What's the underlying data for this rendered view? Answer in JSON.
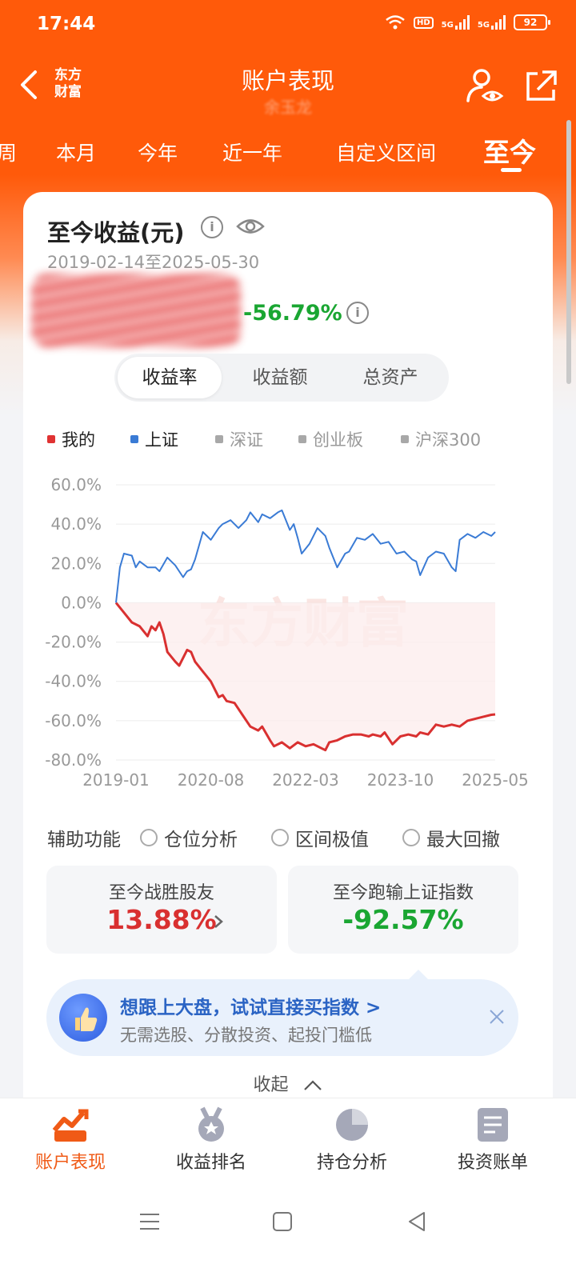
{
  "status_bar": {
    "time": "17:44",
    "hd_label": "HD",
    "net1": "5G",
    "net2": "5G",
    "battery": "92"
  },
  "header": {
    "logo_text": "东方财富",
    "title": "账户表现",
    "subtitle": "余玉龙"
  },
  "period_tabs": [
    {
      "label": "周",
      "active": false
    },
    {
      "label": "本月",
      "active": false
    },
    {
      "label": "今年",
      "active": false
    },
    {
      "label": "近一年",
      "active": false
    },
    {
      "label": "自定义区间",
      "active": false
    },
    {
      "label": "至今",
      "active": true
    }
  ],
  "summary": {
    "title": "至今收益(元)",
    "date_range": "2019-02-14至2025-05-30",
    "return_pct": "-56.79%",
    "info_glyph": "i"
  },
  "metric_tabs": [
    {
      "label": "收益率",
      "active": true
    },
    {
      "label": "收益额",
      "active": false
    },
    {
      "label": "总资产",
      "active": false
    }
  ],
  "legend": [
    {
      "label": "我的",
      "color": "#e03232"
    },
    {
      "label": "上证",
      "color": "#3a7bd5"
    },
    {
      "label": "深证",
      "color": "#a8a8a8"
    },
    {
      "label": "创业板",
      "color": "#a8a8a8"
    },
    {
      "label": "沪深300",
      "color": "#a8a8a8"
    }
  ],
  "chart_data": {
    "type": "line",
    "watermark": "东方财富",
    "x_ticks": [
      "2019-01",
      "2020-08",
      "2022-03",
      "2023-10",
      "2025-05"
    ],
    "y_ticks": [
      "60.0%",
      "40.0%",
      "20.0%",
      "0.0%",
      "-20.0%",
      "-40.0%",
      "-60.0%",
      "-80.0%"
    ],
    "ylim": [
      -80,
      60
    ],
    "grid": true,
    "series": [
      {
        "name": "我的",
        "color": "#d93030",
        "points": [
          [
            0,
            0
          ],
          [
            2,
            -5
          ],
          [
            4,
            -10
          ],
          [
            6,
            -12
          ],
          [
            8,
            -17
          ],
          [
            9,
            -12
          ],
          [
            10,
            -14
          ],
          [
            11,
            -10
          ],
          [
            12,
            -16
          ],
          [
            13,
            -25
          ],
          [
            15,
            -30
          ],
          [
            16,
            -32
          ],
          [
            18,
            -24
          ],
          [
            19,
            -25
          ],
          [
            20,
            -30
          ],
          [
            22,
            -35
          ],
          [
            24,
            -40
          ],
          [
            26,
            -48
          ],
          [
            27,
            -47
          ],
          [
            28,
            -50
          ],
          [
            30,
            -51
          ],
          [
            32,
            -57
          ],
          [
            34,
            -63
          ],
          [
            36,
            -65
          ],
          [
            37,
            -63
          ],
          [
            39,
            -70
          ],
          [
            40,
            -73
          ],
          [
            42,
            -71
          ],
          [
            44,
            -74
          ],
          [
            46,
            -71
          ],
          [
            48,
            -73
          ],
          [
            50,
            -72
          ],
          [
            52,
            -74
          ],
          [
            53,
            -75
          ],
          [
            54,
            -71
          ],
          [
            56,
            -70
          ],
          [
            58,
            -68
          ],
          [
            60,
            -67
          ],
          [
            62,
            -67
          ],
          [
            64,
            -68
          ],
          [
            65,
            -67
          ],
          [
            67,
            -68
          ],
          [
            68,
            -66
          ],
          [
            70,
            -72
          ],
          [
            72,
            -68
          ],
          [
            74,
            -67
          ],
          [
            76,
            -68
          ],
          [
            77,
            -66
          ],
          [
            79,
            -67
          ],
          [
            81,
            -62
          ],
          [
            83,
            -63
          ],
          [
            85,
            -62
          ],
          [
            87,
            -63
          ],
          [
            89,
            -60
          ],
          [
            91,
            -59
          ],
          [
            93,
            -58
          ],
          [
            95,
            -57
          ],
          [
            96,
            -56.8
          ]
        ]
      },
      {
        "name": "上证",
        "color": "#3a7bd5",
        "points": [
          [
            0,
            0
          ],
          [
            1,
            18
          ],
          [
            2,
            25
          ],
          [
            4,
            24
          ],
          [
            5,
            18
          ],
          [
            6,
            21
          ],
          [
            8,
            18
          ],
          [
            10,
            18
          ],
          [
            11,
            16
          ],
          [
            13,
            23
          ],
          [
            15,
            19
          ],
          [
            17,
            13
          ],
          [
            18,
            16
          ],
          [
            19,
            17
          ],
          [
            20,
            22
          ],
          [
            22,
            36
          ],
          [
            23,
            34
          ],
          [
            24,
            32
          ],
          [
            26,
            38
          ],
          [
            27,
            40
          ],
          [
            29,
            42
          ],
          [
            31,
            38
          ],
          [
            33,
            42
          ],
          [
            34,
            46
          ],
          [
            36,
            41
          ],
          [
            37,
            45
          ],
          [
            39,
            43
          ],
          [
            41,
            46
          ],
          [
            42,
            47
          ],
          [
            44,
            37
          ],
          [
            45,
            40
          ],
          [
            46,
            33
          ],
          [
            47,
            25
          ],
          [
            49,
            30
          ],
          [
            51,
            38
          ],
          [
            53,
            34
          ],
          [
            54,
            28
          ],
          [
            56,
            18
          ],
          [
            58,
            25
          ],
          [
            59,
            26
          ],
          [
            61,
            33
          ],
          [
            63,
            32
          ],
          [
            65,
            35
          ],
          [
            67,
            30
          ],
          [
            69,
            31
          ],
          [
            71,
            25
          ],
          [
            73,
            26
          ],
          [
            75,
            22
          ],
          [
            76,
            21
          ],
          [
            77,
            14
          ],
          [
            79,
            23
          ],
          [
            81,
            26
          ],
          [
            83,
            25
          ],
          [
            85,
            18
          ],
          [
            86,
            16
          ],
          [
            87,
            32
          ],
          [
            89,
            35
          ],
          [
            91,
            33
          ],
          [
            93,
            36
          ],
          [
            95,
            34
          ],
          [
            96,
            36
          ]
        ]
      }
    ]
  },
  "aux": {
    "label": "辅助功能",
    "options": [
      "仓位分析",
      "区间极值",
      "最大回撤"
    ]
  },
  "stats": [
    {
      "label": "至今战胜股友",
      "value": "13.88%",
      "color": "#d93030"
    },
    {
      "label": "至今跑输上证指数",
      "value": "-92.57%",
      "color": "#1aa632"
    }
  ],
  "promo": {
    "title": "想跟上大盘，试试直接买指数 >",
    "subtitle": "无需选股、分散投资、起投门槛低"
  },
  "collapse_label": "收起",
  "bottom_nav": [
    {
      "label": "账户表现",
      "icon": "chart-trend-icon",
      "active": true
    },
    {
      "label": "收益排名",
      "icon": "medal-icon",
      "active": false
    },
    {
      "label": "持仓分析",
      "icon": "pie-chart-icon",
      "active": false
    },
    {
      "label": "投资账单",
      "icon": "bill-icon",
      "active": false
    }
  ]
}
